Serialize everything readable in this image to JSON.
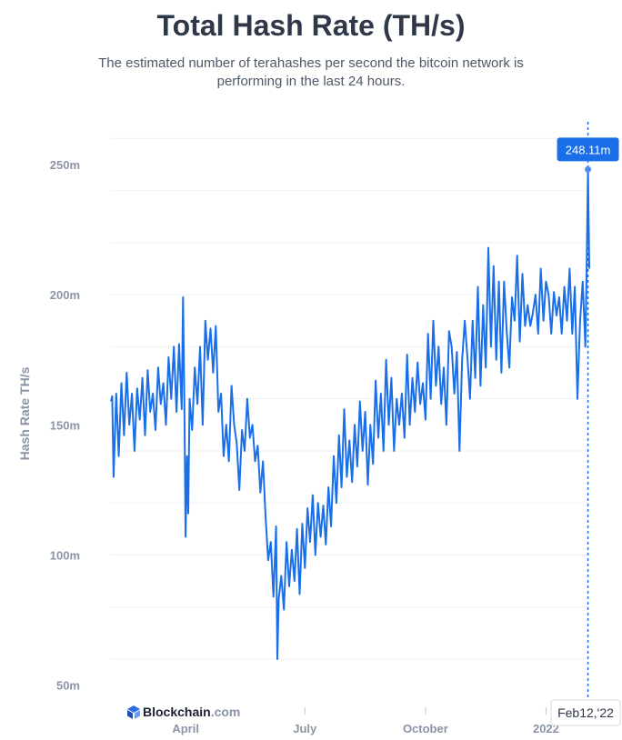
{
  "header": {
    "title": "Total Hash Rate (TH/s)",
    "subtitle": "The estimated number of terahashes per second the bitcoin network is performing in the last 24 hours."
  },
  "chart_data": {
    "type": "line",
    "title": "Total Hash Rate (TH/s)",
    "ylabel": "Hash Rate TH/s",
    "xlabel": "",
    "ylim": [
      45,
      265
    ],
    "xlim": [
      0,
      365
    ],
    "y_ticks": [
      {
        "value": 50,
        "label": "50m"
      },
      {
        "value": 100,
        "label": "100m"
      },
      {
        "value": 150,
        "label": "150m"
      },
      {
        "value": 200,
        "label": "200m"
      },
      {
        "value": 250,
        "label": "250m"
      }
    ],
    "x_ticks": [
      {
        "value": 57,
        "label": "April"
      },
      {
        "value": 148,
        "label": "July"
      },
      {
        "value": 240,
        "label": "October"
      },
      {
        "value": 332,
        "label": "2022"
      }
    ],
    "x_unit": "days since 2021-02-13",
    "series": [
      {
        "name": "Hash Rate",
        "color": "#1a6fe8",
        "keypoints": [
          [
            0,
            159
          ],
          [
            1,
            161
          ],
          [
            2,
            130
          ],
          [
            4,
            162
          ],
          [
            6,
            138
          ],
          [
            8,
            166
          ],
          [
            10,
            146
          ],
          [
            12,
            170
          ],
          [
            14,
            150
          ],
          [
            16,
            162
          ],
          [
            18,
            140
          ],
          [
            20,
            164
          ],
          [
            22,
            152
          ],
          [
            24,
            168
          ],
          [
            26,
            146
          ],
          [
            28,
            171
          ],
          [
            30,
            155
          ],
          [
            32,
            162
          ],
          [
            34,
            148
          ],
          [
            36,
            172
          ],
          [
            38,
            158
          ],
          [
            40,
            166
          ],
          [
            42,
            150
          ],
          [
            44,
            176
          ],
          [
            46,
            160
          ],
          [
            48,
            180
          ],
          [
            50,
            155
          ],
          [
            52,
            181
          ],
          [
            54,
            156
          ],
          [
            55,
            199
          ],
          [
            56,
            160
          ],
          [
            57,
            107
          ],
          [
            58,
            138
          ],
          [
            59,
            116
          ],
          [
            60,
            160
          ],
          [
            62,
            148
          ],
          [
            64,
            172
          ],
          [
            66,
            158
          ],
          [
            68,
            180
          ],
          [
            70,
            150
          ],
          [
            72,
            190
          ],
          [
            74,
            175
          ],
          [
            76,
            187
          ],
          [
            78,
            170
          ],
          [
            80,
            188
          ],
          [
            82,
            155
          ],
          [
            84,
            162
          ],
          [
            86,
            138
          ],
          [
            88,
            150
          ],
          [
            90,
            136
          ],
          [
            92,
            165
          ],
          [
            94,
            150
          ],
          [
            96,
            143
          ],
          [
            98,
            125
          ],
          [
            100,
            148
          ],
          [
            102,
            140
          ],
          [
            104,
            160
          ],
          [
            106,
            145
          ],
          [
            108,
            150
          ],
          [
            110,
            136
          ],
          [
            112,
            142
          ],
          [
            114,
            124
          ],
          [
            116,
            136
          ],
          [
            118,
            115
          ],
          [
            120,
            98
          ],
          [
            122,
            105
          ],
          [
            124,
            84
          ],
          [
            126,
            111
          ],
          [
            127,
            60
          ],
          [
            128,
            83
          ],
          [
            130,
            92
          ],
          [
            132,
            79
          ],
          [
            134,
            105
          ],
          [
            136,
            88
          ],
          [
            138,
            102
          ],
          [
            140,
            90
          ],
          [
            142,
            110
          ],
          [
            144,
            85
          ],
          [
            146,
            112
          ],
          [
            148,
            95
          ],
          [
            150,
            118
          ],
          [
            152,
            105
          ],
          [
            154,
            123
          ],
          [
            156,
            100
          ],
          [
            158,
            120
          ],
          [
            160,
            107
          ],
          [
            162,
            119
          ],
          [
            164,
            104
          ],
          [
            166,
            126
          ],
          [
            168,
            111
          ],
          [
            170,
            138
          ],
          [
            172,
            120
          ],
          [
            174,
            146
          ],
          [
            176,
            126
          ],
          [
            178,
            156
          ],
          [
            180,
            130
          ],
          [
            182,
            144
          ],
          [
            184,
            128
          ],
          [
            186,
            150
          ],
          [
            188,
            134
          ],
          [
            190,
            159
          ],
          [
            192,
            140
          ],
          [
            194,
            155
          ],
          [
            196,
            127
          ],
          [
            198,
            150
          ],
          [
            200,
            135
          ],
          [
            202,
            167
          ],
          [
            204,
            145
          ],
          [
            206,
            162
          ],
          [
            208,
            140
          ],
          [
            210,
            175
          ],
          [
            212,
            150
          ],
          [
            214,
            168
          ],
          [
            216,
            140
          ],
          [
            218,
            160
          ],
          [
            220,
            150
          ],
          [
            222,
            162
          ],
          [
            224,
            145
          ],
          [
            226,
            177
          ],
          [
            228,
            150
          ],
          [
            230,
            168
          ],
          [
            232,
            155
          ],
          [
            234,
            174
          ],
          [
            236,
            158
          ],
          [
            238,
            166
          ],
          [
            240,
            152
          ],
          [
            242,
            185
          ],
          [
            244,
            160
          ],
          [
            246,
            190
          ],
          [
            248,
            165
          ],
          [
            250,
            180
          ],
          [
            252,
            158
          ],
          [
            254,
            172
          ],
          [
            256,
            150
          ],
          [
            258,
            186
          ],
          [
            260,
            180
          ],
          [
            262,
            162
          ],
          [
            264,
            178
          ],
          [
            266,
            140
          ],
          [
            268,
            175
          ],
          [
            270,
            190
          ],
          [
            272,
            176
          ],
          [
            274,
            160
          ],
          [
            276,
            190
          ],
          [
            278,
            168
          ],
          [
            280,
            203
          ],
          [
            282,
            165
          ],
          [
            284,
            196
          ],
          [
            286,
            172
          ],
          [
            288,
            218
          ],
          [
            290,
            180
          ],
          [
            292,
            211
          ],
          [
            294,
            175
          ],
          [
            296,
            205
          ],
          [
            298,
            170
          ],
          [
            300,
            205
          ],
          [
            302,
            186
          ],
          [
            304,
            172
          ],
          [
            306,
            199
          ],
          [
            308,
            190
          ],
          [
            310,
            215
          ],
          [
            312,
            182
          ],
          [
            314,
            208
          ],
          [
            316,
            188
          ],
          [
            318,
            196
          ],
          [
            320,
            188
          ],
          [
            322,
            193
          ],
          [
            324,
            200
          ],
          [
            326,
            185
          ],
          [
            328,
            210
          ],
          [
            330,
            190
          ],
          [
            332,
            205
          ],
          [
            334,
            200
          ],
          [
            336,
            185
          ],
          [
            338,
            201
          ],
          [
            340,
            192
          ],
          [
            342,
            199
          ],
          [
            344,
            185
          ],
          [
            346,
            203
          ],
          [
            348,
            190
          ],
          [
            350,
            210
          ],
          [
            352,
            185
          ],
          [
            354,
            203
          ],
          [
            356,
            160
          ],
          [
            358,
            190
          ],
          [
            360,
            205
          ],
          [
            362,
            180
          ],
          [
            363,
            210
          ],
          [
            364,
            248.11
          ],
          [
            365,
            210
          ]
        ]
      }
    ],
    "annotation": {
      "x": 364,
      "value": 248.11,
      "label": "248.11m",
      "date": "Feb12,'22"
    },
    "watermark": {
      "brand": "Blockchain",
      "suffix": ".com"
    }
  }
}
